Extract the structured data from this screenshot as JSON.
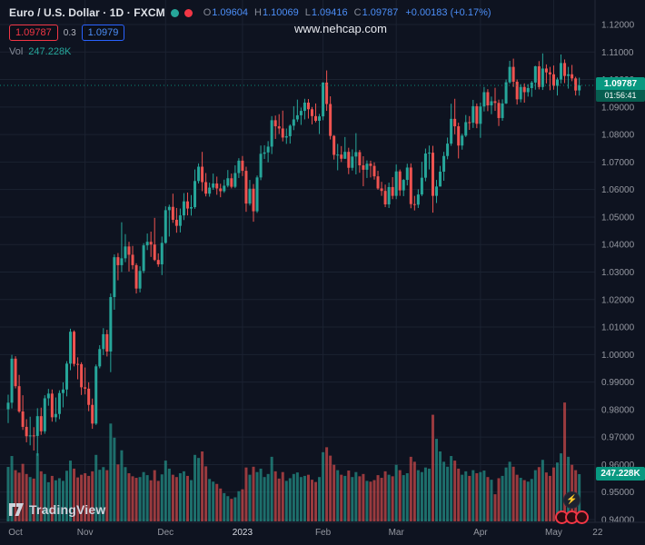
{
  "header": {
    "symbol_title": "Euro / U.S. Dollar · 1D · FXCM",
    "ohlc": {
      "o_label": "O",
      "o": "1.09604",
      "h_label": "H",
      "h": "1.10069",
      "l_label": "L",
      "l": "1.09416",
      "c_label": "C",
      "c": "1.09787",
      "change": "+0.00183 (+0.17%)"
    },
    "bid": "1.09787",
    "spread": "0.3",
    "ask": "1.0979",
    "vol_label": "Vol",
    "vol_value": "247.228K"
  },
  "watermark": "www.nehcap.com",
  "price_label": {
    "price": "1.09787",
    "countdown": "01:56:41"
  },
  "volume_label": "247.228K",
  "footer": {
    "logo_text": "TradingView"
  },
  "icons": {
    "boost": "⚡"
  },
  "colors": {
    "background": "#0e1320",
    "up": "#26a69a",
    "down": "#ef5350",
    "bid_red": "#f23645",
    "ask_blue": "#2962ff",
    "legend_value_blue": "#4c8ef7",
    "price_line_green": "#089981",
    "grid": "#1b2231",
    "axis_text": "#9598a1"
  },
  "price_axis": {
    "ticks": [
      "1.12000",
      "1.11000",
      "1.10000",
      "1.09000",
      "1.08000",
      "1.07000",
      "1.06000",
      "1.05000",
      "1.04000",
      "1.03000",
      "1.02000",
      "1.01000",
      "1.00000",
      "0.99000",
      "0.98000",
      "0.97000",
      "0.96000",
      "0.95000",
      "0.94000"
    ]
  },
  "time_axis": {
    "labels": [
      {
        "text": "Oct",
        "i": 2,
        "em": false
      },
      {
        "text": "Nov",
        "i": 21,
        "em": false
      },
      {
        "text": "Dec",
        "i": 43,
        "em": false
      },
      {
        "text": "2023",
        "i": 64,
        "em": true
      },
      {
        "text": "Feb",
        "i": 86,
        "em": false
      },
      {
        "text": "Mar",
        "i": 106,
        "em": false
      },
      {
        "text": "Apr",
        "i": 129,
        "em": false
      },
      {
        "text": "May",
        "i": 149,
        "em": false
      },
      {
        "text": "22",
        "i": 161,
        "em": false
      }
    ]
  },
  "chart_data": {
    "type": "candlestick",
    "title": "Euro / U.S. Dollar 1D FXCM",
    "symbol": "EUR/USD",
    "timeframe": "1D",
    "price_range": [
      0.94,
      1.12
    ],
    "grid": true,
    "legend_position": "top-left",
    "last_close": 1.09787,
    "last_volume": 247.228,
    "month_labels": [
      "Oct",
      "Nov",
      "Dec",
      "2023",
      "Feb",
      "Mar",
      "Apr",
      "May"
    ],
    "month_start_indices": [
      0,
      21,
      43,
      64,
      86,
      106,
      129,
      149
    ],
    "candles": [
      [
        0.9801,
        0.9854,
        0.9751,
        0.9825
      ],
      [
        0.9825,
        0.9999,
        0.9804,
        0.9985
      ],
      [
        0.9985,
        0.9994,
        0.9877,
        0.9885
      ],
      [
        0.9885,
        0.9926,
        0.9788,
        0.9793
      ],
      [
        0.9793,
        0.9852,
        0.9726,
        0.9737
      ],
      [
        0.9737,
        0.9765,
        0.9681,
        0.9703
      ],
      [
        0.9703,
        0.9774,
        0.967,
        0.9706
      ],
      [
        0.9706,
        0.9736,
        0.9651,
        0.9704
      ],
      [
        0.9704,
        0.9805,
        0.9632,
        0.9776
      ],
      [
        0.9776,
        0.9807,
        0.9708,
        0.9721
      ],
      [
        0.9721,
        0.9852,
        0.9712,
        0.9841
      ],
      [
        0.9841,
        0.9875,
        0.9814,
        0.9858
      ],
      [
        0.9858,
        0.9873,
        0.9756,
        0.9772
      ],
      [
        0.9772,
        0.9844,
        0.9755,
        0.9784
      ],
      [
        0.9784,
        0.987,
        0.9765,
        0.986
      ],
      [
        0.986,
        0.9899,
        0.9808,
        0.9873
      ],
      [
        0.9873,
        0.9976,
        0.9848,
        0.9967
      ],
      [
        0.9967,
        1.0094,
        0.9943,
        1.0083
      ],
      [
        1.0083,
        1.0088,
        0.9957,
        0.9966
      ],
      [
        0.9966,
        0.999,
        0.991,
        0.9965
      ],
      [
        0.9965,
        0.9972,
        0.9853,
        0.9881
      ],
      [
        0.9881,
        0.9953,
        0.9855,
        0.9876
      ],
      [
        0.9876,
        0.9899,
        0.9794,
        0.9817
      ],
      [
        0.9817,
        0.984,
        0.973,
        0.9749
      ],
      [
        0.9749,
        0.9964,
        0.9744,
        0.9957
      ],
      [
        0.9957,
        1.0034,
        0.995,
        1.002
      ],
      [
        1.002,
        1.0096,
        0.9998,
        1.0074
      ],
      [
        1.0074,
        1.009,
        0.9993,
        1.0011
      ],
      [
        1.0011,
        1.0222,
        0.9936,
        1.0209
      ],
      [
        1.0209,
        1.0364,
        1.0163,
        1.0354
      ],
      [
        1.0354,
        1.0369,
        1.027,
        1.0325
      ],
      [
        1.0325,
        1.0481,
        1.03,
        1.035
      ],
      [
        1.035,
        1.0438,
        1.0336,
        1.0393
      ],
      [
        1.0393,
        1.041,
        1.0302,
        1.0363
      ],
      [
        1.0363,
        1.0395,
        1.031,
        1.0325
      ],
      [
        1.0325,
        1.0332,
        1.0222,
        1.024
      ],
      [
        1.024,
        1.0321,
        1.0226,
        1.0304
      ],
      [
        1.0304,
        1.0405,
        1.0296,
        1.0397
      ],
      [
        1.0397,
        1.044,
        1.038,
        1.041
      ],
      [
        1.041,
        1.0447,
        1.0355,
        1.04
      ],
      [
        1.04,
        1.0497,
        1.034,
        1.0344
      ],
      [
        1.0344,
        1.0368,
        1.0319,
        1.0328
      ],
      [
        1.0328,
        1.0429,
        1.0289,
        1.0406
      ],
      [
        1.0406,
        1.0539,
        1.0403,
        1.0525
      ],
      [
        1.0525,
        1.0545,
        1.0429,
        1.0537
      ],
      [
        1.0537,
        1.0585,
        1.0479,
        1.049
      ],
      [
        1.049,
        1.0533,
        1.0443,
        1.0468
      ],
      [
        1.0468,
        1.0531,
        1.0444,
        1.0506
      ],
      [
        1.0506,
        1.0587,
        1.0489,
        1.0557
      ],
      [
        1.0557,
        1.0589,
        1.0506,
        1.0531
      ],
      [
        1.0531,
        1.058,
        1.0505,
        1.0536
      ],
      [
        1.0536,
        1.0673,
        1.053,
        1.0631
      ],
      [
        1.0631,
        1.0695,
        1.0622,
        1.0683
      ],
      [
        1.0683,
        1.0737,
        1.0594,
        1.0627
      ],
      [
        1.0627,
        1.066,
        1.0575,
        1.0585
      ],
      [
        1.0585,
        1.0625,
        1.0574,
        1.0607
      ],
      [
        1.0607,
        1.0658,
        1.0599,
        1.0622
      ],
      [
        1.0622,
        1.0647,
        1.0581,
        1.0604
      ],
      [
        1.0604,
        1.0621,
        1.0572,
        1.0594
      ],
      [
        1.0594,
        1.0636,
        1.0588,
        1.0614
      ],
      [
        1.0614,
        1.0671,
        1.0608,
        1.0641
      ],
      [
        1.0641,
        1.0658,
        1.0604,
        1.061
      ],
      [
        1.061,
        1.0688,
        1.0605,
        1.066
      ],
      [
        1.066,
        1.0714,
        1.0642,
        1.0705
      ],
      [
        1.0705,
        1.0722,
        1.0649,
        1.0668
      ],
      [
        1.0668,
        1.0683,
        1.0519,
        1.0549
      ],
      [
        1.0549,
        1.0635,
        1.0542,
        1.0603
      ],
      [
        1.0603,
        1.062,
        1.0483,
        1.0521
      ],
      [
        1.0521,
        1.0651,
        1.0515,
        1.0644
      ],
      [
        1.0644,
        1.076,
        1.0634,
        1.073
      ],
      [
        1.073,
        1.0761,
        1.0711,
        1.0735
      ],
      [
        1.0735,
        1.0776,
        1.0699,
        1.0756
      ],
      [
        1.0756,
        1.0867,
        1.0729,
        1.0852
      ],
      [
        1.0852,
        1.0869,
        1.0784,
        1.083
      ],
      [
        1.083,
        1.0874,
        1.0802,
        1.0822
      ],
      [
        1.0822,
        1.0887,
        1.0775,
        1.0789
      ],
      [
        1.0789,
        1.0822,
        1.0766,
        1.0794
      ],
      [
        1.0794,
        1.0837,
        1.0767,
        1.0832
      ],
      [
        1.0832,
        1.0903,
        1.0816,
        1.0855
      ],
      [
        1.0855,
        1.0927,
        1.0846,
        1.087
      ],
      [
        1.087,
        1.0898,
        1.0835,
        1.0886
      ],
      [
        1.0886,
        1.093,
        1.0855,
        1.0916
      ],
      [
        1.0916,
        1.0929,
        1.0858,
        1.0892
      ],
      [
        1.0892,
        1.09,
        1.0837,
        1.0867
      ],
      [
        1.0867,
        1.0913,
        1.0844,
        1.085
      ],
      [
        1.085,
        1.0875,
        1.0802,
        1.0866
      ],
      [
        1.0866,
        1.099,
        1.0852,
        1.0989
      ],
      [
        1.0989,
        1.1033,
        1.0886,
        1.0911
      ],
      [
        1.0911,
        1.0939,
        1.0782,
        1.0795
      ],
      [
        1.0795,
        1.0798,
        1.0709,
        1.0726
      ],
      [
        1.0726,
        1.0766,
        1.067,
        1.0727
      ],
      [
        1.0727,
        1.0758,
        1.07,
        1.0712
      ],
      [
        1.0712,
        1.0791,
        1.0711,
        1.0737
      ],
      [
        1.0737,
        1.0752,
        1.0656,
        1.0679
      ],
      [
        1.0679,
        1.0746,
        1.0669,
        1.072
      ],
      [
        1.072,
        1.0805,
        1.0655,
        1.0736
      ],
      [
        1.0736,
        1.0744,
        1.0661,
        1.0688
      ],
      [
        1.0688,
        1.0721,
        1.0612,
        1.0672
      ],
      [
        1.0672,
        1.0706,
        1.0642,
        1.0694
      ],
      [
        1.0694,
        1.0705,
        1.0644,
        1.0686
      ],
      [
        1.0686,
        1.0699,
        1.0636,
        1.0648
      ],
      [
        1.0648,
        1.0668,
        1.0599,
        1.0604
      ],
      [
        1.0604,
        1.0628,
        1.0577,
        1.0595
      ],
      [
        1.0595,
        1.0618,
        1.0536,
        1.0546
      ],
      [
        1.0546,
        1.0625,
        1.0533,
        1.0609
      ],
      [
        1.0609,
        1.0645,
        1.0565,
        1.0577
      ],
      [
        1.0577,
        1.0691,
        1.0565,
        1.0666
      ],
      [
        1.0666,
        1.0673,
        1.0577,
        1.0597
      ],
      [
        1.0597,
        1.0638,
        1.0576,
        1.0635
      ],
      [
        1.0635,
        1.0694,
        1.0615,
        1.068
      ],
      [
        1.068,
        1.0695,
        1.0532,
        1.0547
      ],
      [
        1.0547,
        1.0577,
        1.0524,
        1.0545
      ],
      [
        1.0545,
        1.0601,
        1.0533,
        1.0582
      ],
      [
        1.0582,
        1.0701,
        1.0576,
        1.0643
      ],
      [
        1.0643,
        1.0749,
        1.063,
        1.0731
      ],
      [
        1.0731,
        1.076,
        1.0673,
        1.0734
      ],
      [
        1.0734,
        1.0759,
        1.0516,
        1.0577
      ],
      [
        1.0577,
        1.0635,
        1.0551,
        1.0611
      ],
      [
        1.0611,
        1.0686,
        1.0611,
        1.0665
      ],
      [
        1.0665,
        1.0737,
        1.0632,
        1.0722
      ],
      [
        1.0722,
        1.0789,
        1.071,
        1.0767
      ],
      [
        1.0767,
        1.0912,
        1.0759,
        1.0857
      ],
      [
        1.0857,
        1.093,
        1.0801,
        1.083
      ],
      [
        1.083,
        1.0843,
        1.0713,
        1.076
      ],
      [
        1.076,
        1.0803,
        1.0745,
        1.0796
      ],
      [
        1.0796,
        1.0871,
        1.0791,
        1.0845
      ],
      [
        1.0845,
        1.0867,
        1.0817,
        1.0843
      ],
      [
        1.0843,
        1.0926,
        1.0824,
        1.0903
      ],
      [
        1.0903,
        1.0913,
        1.0823,
        1.0839
      ],
      [
        1.0839,
        1.0916,
        1.0788,
        1.0902
      ],
      [
        1.0902,
        1.0973,
        1.0884,
        1.0954
      ],
      [
        1.0954,
        1.0965,
        1.0885,
        1.0906
      ],
      [
        1.0906,
        1.0938,
        1.0874,
        1.0921
      ],
      [
        1.0921,
        1.097,
        1.0886,
        1.0915
      ],
      [
        1.0915,
        1.0927,
        1.0831,
        1.086
      ],
      [
        1.086,
        1.0928,
        1.085,
        1.0913
      ],
      [
        1.0913,
        1.1,
        1.0911,
        1.099
      ],
      [
        1.099,
        1.1068,
        1.0985,
        1.1046
      ],
      [
        1.1046,
        1.1076,
        1.0973,
        1.0992
      ],
      [
        1.0992,
        1.1,
        1.0909,
        1.0928
      ],
      [
        1.0928,
        1.0983,
        1.0917,
        1.0973
      ],
      [
        1.0973,
        1.0986,
        1.0916,
        1.0954
      ],
      [
        1.0954,
        1.0983,
        1.0938,
        1.0969
      ],
      [
        1.0969,
        1.0995,
        1.0937,
        1.0989
      ],
      [
        1.0989,
        1.105,
        1.0963,
        1.1048
      ],
      [
        1.1048,
        1.1067,
        1.0964,
        1.0973
      ],
      [
        1.0973,
        1.1095,
        1.0962,
        1.104
      ],
      [
        1.104,
        1.1055,
        1.0986,
        1.1026
      ],
      [
        1.1026,
        1.1046,
        1.0961,
        1.1019
      ],
      [
        1.1019,
        1.1051,
        1.0963,
        1.0977
      ],
      [
        1.0977,
        1.1007,
        1.0942,
        1.1
      ],
      [
        1.1,
        1.1091,
        1.0986,
        1.106
      ],
      [
        1.106,
        1.1073,
        1.0987,
        1.1013
      ],
      [
        1.1013,
        1.1046,
        1.0967,
        1.1019
      ],
      [
        1.1019,
        1.1053,
        1.0994,
        1.1004
      ],
      [
        1.1004,
        1.101,
        1.0942,
        1.096
      ],
      [
        1.09604,
        1.10069,
        1.09416,
        1.09787
      ]
    ],
    "volumes": [
      285,
      342,
      268,
      255,
      301,
      248,
      232,
      224,
      356,
      262,
      248,
      205,
      238,
      215,
      226,
      212,
      265,
      318,
      276,
      230,
      244,
      252,
      238,
      262,
      348,
      270,
      284,
      268,
      512,
      438,
      298,
      372,
      284,
      252,
      236,
      228,
      232,
      258,
      242,
      215,
      268,
      212,
      246,
      318,
      276,
      244,
      232,
      252,
      262,
      238,
      216,
      348,
      332,
      366,
      288,
      222,
      208,
      196,
      172,
      148,
      132,
      118,
      126,
      158,
      168,
      282,
      244,
      286,
      258,
      276,
      232,
      248,
      338,
      262,
      224,
      258,
      212,
      226,
      248,
      256,
      232,
      238,
      244,
      218,
      206,
      232,
      362,
      388,
      344,
      296,
      268,
      244,
      238,
      266,
      232,
      258,
      236,
      248,
      212,
      208,
      216,
      242,
      228,
      262,
      244,
      236,
      296,
      268,
      242,
      252,
      338,
      312,
      268,
      258,
      282,
      276,
      558,
      432,
      366,
      312,
      286,
      342,
      318,
      276,
      244,
      262,
      238,
      268,
      252,
      258,
      266,
      232,
      218,
      142,
      226,
      238,
      282,
      312,
      286,
      244,
      228,
      216,
      208,
      222,
      268,
      284,
      322,
      256,
      238,
      282,
      308,
      356,
      622,
      338,
      296,
      268,
      247.228
    ]
  }
}
